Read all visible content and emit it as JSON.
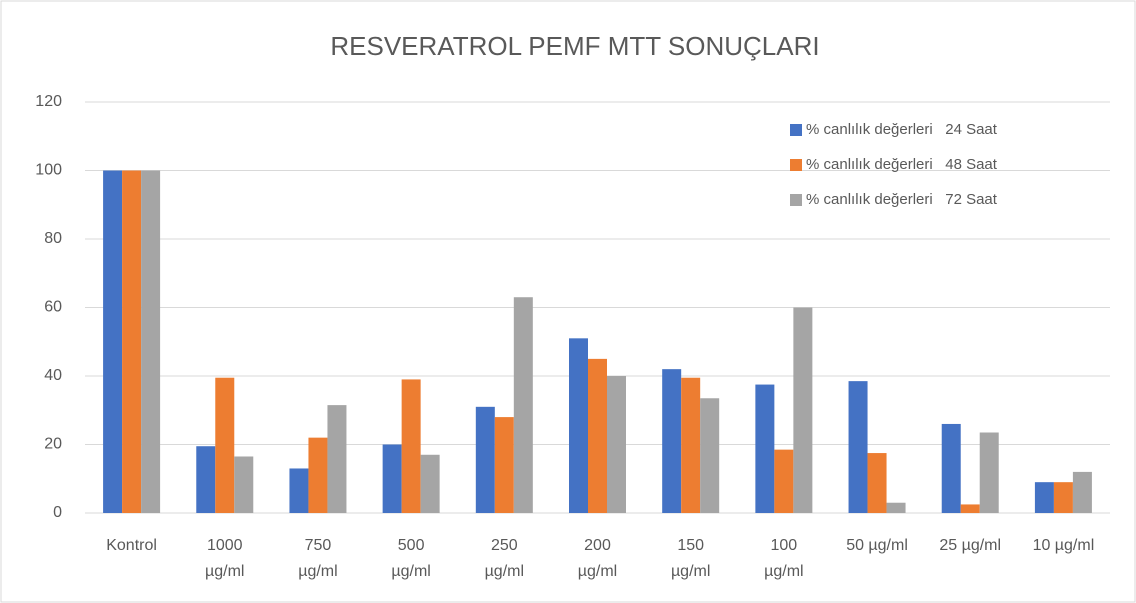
{
  "chart_data": {
    "type": "bar",
    "title": "RESVERATROL PEMF MTT SONUÇLARI",
    "categories": [
      "Kontrol",
      "1000\nµg/ml",
      "750\nµg/ml",
      "500\nµg/ml",
      "250\nµg/ml",
      "200\nµg/ml",
      "150\nµg/ml",
      "100\nµg/ml",
      "50 µg/ml",
      "25 µg/ml",
      "10 µg/ml"
    ],
    "series": [
      {
        "name": "% canlılık değerleri   24 Saat",
        "color": "#4472c4",
        "values": [
          100,
          19.5,
          13,
          20,
          31,
          51,
          42,
          37.5,
          38.5,
          26,
          9
        ]
      },
      {
        "name": "% canlılık değerleri   48 Saat",
        "color": "#ed7d31",
        "values": [
          100,
          39.5,
          22,
          39,
          28,
          45,
          39.5,
          18.5,
          17.5,
          2.5,
          9
        ]
      },
      {
        "name": "% canlılık değerleri   72 Saat",
        "color": "#a5a5a5",
        "values": [
          100,
          16.5,
          31.5,
          17,
          63,
          40,
          33.5,
          60,
          3,
          23.5,
          12
        ]
      }
    ],
    "ylim": [
      0,
      120
    ],
    "yticks": [
      0,
      20,
      40,
      60,
      80,
      100,
      120
    ],
    "grid": true,
    "legend": "upper right"
  }
}
